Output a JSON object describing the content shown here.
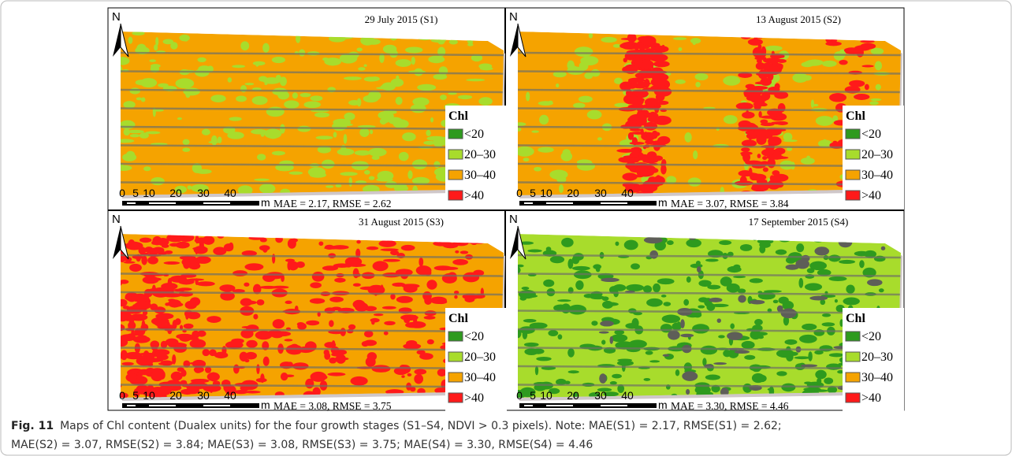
{
  "figure": {
    "legend_colors": [
      "#2e9a1e",
      "#a8dc2c",
      "#f5a300",
      "#ff1a1a"
    ],
    "panels": [
      {
        "title": "29 July 2015 (S1)",
        "north": "N",
        "scale_labels": [
          "0",
          "5",
          "10",
          "20",
          "30",
          "40"
        ],
        "scale_unit": "m",
        "metrics": "MAE = 2.17, RMSE = 2.62",
        "legend_title": "Chl",
        "legend_items": [
          "<20",
          "20–30",
          "30–40",
          ">40"
        ]
      },
      {
        "title": "13 August 2015 (S2)",
        "north": "N",
        "scale_labels": [
          "0",
          "5",
          "10",
          "20",
          "30",
          "40"
        ],
        "scale_unit": "m",
        "metrics": "MAE = 3.07, RMSE = 3.84",
        "legend_title": "Chl",
        "legend_items": [
          "<20",
          "20–30",
          "30–40",
          ">40"
        ]
      },
      {
        "title": "31 August 2015 (S3)",
        "north": "N",
        "scale_labels": [
          "0",
          "5",
          "10",
          "20",
          "30",
          "40"
        ],
        "scale_unit": "m",
        "metrics": "MAE = 3.08, RMSE = 3.75",
        "legend_title": "Chl",
        "legend_items": [
          "<20",
          "20–30",
          "30–40",
          ">40"
        ]
      },
      {
        "title": "17 September 2015 (S4)",
        "north": "N",
        "scale_labels": [
          "0",
          "5",
          "10",
          "20",
          "30",
          "40"
        ],
        "scale_unit": "m",
        "metrics": "MAE = 3.30, RMSE = 4.46",
        "legend_title": "Chl",
        "legend_items": [
          "<20",
          "20–30",
          "30–40",
          ">40"
        ]
      }
    ],
    "caption": {
      "label": "Fig. 11",
      "lines": [
        "Maps of Chl content (Dualex units) for the four growth stages (S1–S4, NDVI > 0.3 pixels). Note: MAE(S1) = 2.17, RMSE(S1) = 2.62;",
        "MAE(S2) = 3.07, RMSE(S2) = 3.84; MAE(S3) = 3.08, RMSE(S3) = 3.75; MAE(S4) = 3.30, RMSE(S4) = 4.46"
      ]
    }
  }
}
